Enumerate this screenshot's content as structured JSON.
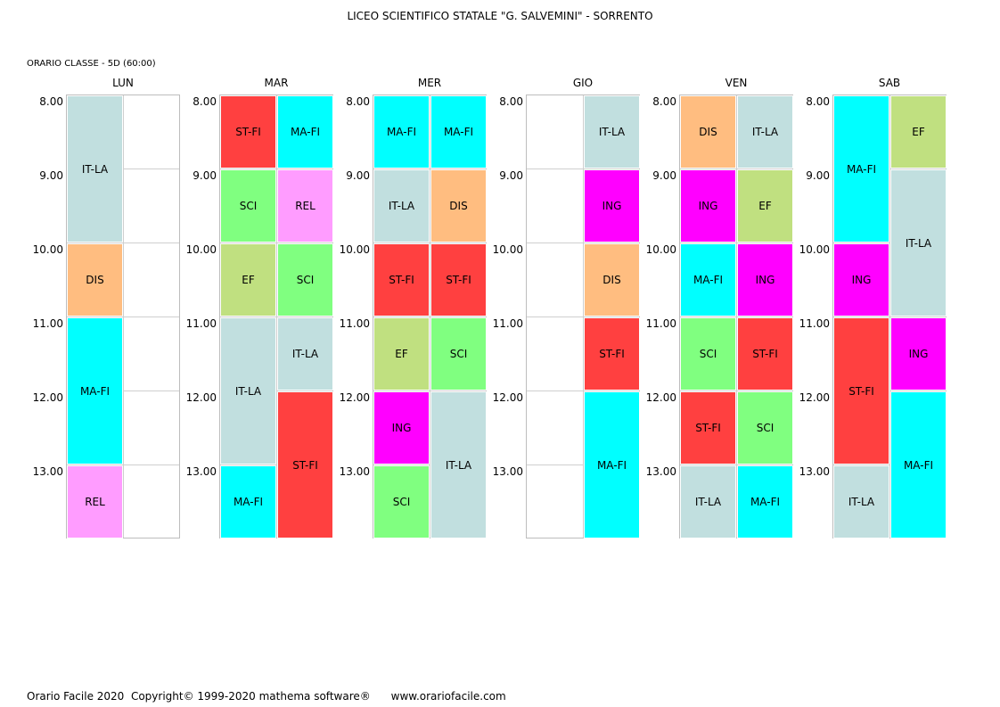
{
  "header": {
    "school": "LICEO SCIENTIFICO STATALE \"G. SALVEMINI\" - SORRENTO",
    "class_info": "ORARIO CLASSE  -  5D  (60:00)"
  },
  "times": [
    "8.00",
    "9.00",
    "10.00",
    "11.00",
    "12.00",
    "13.00"
  ],
  "colors": {
    "IT-LA": "#c1dfdf",
    "DIS": "#ffbd80",
    "MA-FI": "#00ffff",
    "REL": "#ff9cff",
    "ST-FI": "#ff4040",
    "SCI": "#80ff80",
    "EF": "#c0e080",
    "ING": "#ff00ff"
  },
  "days": [
    {
      "name": "LUN",
      "blocks": [
        {
          "col": 0,
          "start": 0,
          "span": 2,
          "subject": "IT-LA"
        },
        {
          "col": 0,
          "start": 2,
          "span": 1,
          "subject": "DIS"
        },
        {
          "col": 0,
          "start": 3,
          "span": 2,
          "subject": "MA-FI"
        },
        {
          "col": 0,
          "start": 5,
          "span": 1,
          "subject": "REL"
        }
      ]
    },
    {
      "name": "MAR",
      "blocks": [
        {
          "col": 0,
          "start": 0,
          "span": 1,
          "subject": "ST-FI"
        },
        {
          "col": 1,
          "start": 0,
          "span": 1,
          "subject": "MA-FI"
        },
        {
          "col": 0,
          "start": 1,
          "span": 1,
          "subject": "SCI"
        },
        {
          "col": 1,
          "start": 1,
          "span": 1,
          "subject": "REL"
        },
        {
          "col": 0,
          "start": 2,
          "span": 1,
          "subject": "EF"
        },
        {
          "col": 1,
          "start": 2,
          "span": 1,
          "subject": "SCI"
        },
        {
          "col": 0,
          "start": 3,
          "span": 2,
          "subject": "IT-LA"
        },
        {
          "col": 1,
          "start": 3,
          "span": 1,
          "subject": "IT-LA"
        },
        {
          "col": 1,
          "start": 4,
          "span": 2,
          "subject": "ST-FI"
        },
        {
          "col": 0,
          "start": 5,
          "span": 1,
          "subject": "MA-FI"
        }
      ]
    },
    {
      "name": "MER",
      "blocks": [
        {
          "col": 0,
          "start": 0,
          "span": 1,
          "subject": "MA-FI"
        },
        {
          "col": 1,
          "start": 0,
          "span": 1,
          "subject": "MA-FI"
        },
        {
          "col": 0,
          "start": 1,
          "span": 1,
          "subject": "IT-LA"
        },
        {
          "col": 1,
          "start": 1,
          "span": 1,
          "subject": "DIS"
        },
        {
          "col": 0,
          "start": 2,
          "span": 1,
          "subject": "ST-FI"
        },
        {
          "col": 1,
          "start": 2,
          "span": 1,
          "subject": "ST-FI"
        },
        {
          "col": 0,
          "start": 3,
          "span": 1,
          "subject": "EF"
        },
        {
          "col": 1,
          "start": 3,
          "span": 1,
          "subject": "SCI"
        },
        {
          "col": 0,
          "start": 4,
          "span": 1,
          "subject": "ING"
        },
        {
          "col": 1,
          "start": 4,
          "span": 2,
          "subject": "IT-LA"
        },
        {
          "col": 0,
          "start": 5,
          "span": 1,
          "subject": "SCI"
        }
      ]
    },
    {
      "name": "GIO",
      "blocks": [
        {
          "col": 1,
          "start": 0,
          "span": 1,
          "subject": "IT-LA"
        },
        {
          "col": 1,
          "start": 1,
          "span": 1,
          "subject": "ING"
        },
        {
          "col": 1,
          "start": 2,
          "span": 1,
          "subject": "DIS"
        },
        {
          "col": 1,
          "start": 3,
          "span": 1,
          "subject": "ST-FI"
        },
        {
          "col": 1,
          "start": 4,
          "span": 2,
          "subject": "MA-FI"
        }
      ]
    },
    {
      "name": "VEN",
      "blocks": [
        {
          "col": 0,
          "start": 0,
          "span": 1,
          "subject": "DIS"
        },
        {
          "col": 1,
          "start": 0,
          "span": 1,
          "subject": "IT-LA"
        },
        {
          "col": 0,
          "start": 1,
          "span": 1,
          "subject": "ING"
        },
        {
          "col": 1,
          "start": 1,
          "span": 1,
          "subject": "EF"
        },
        {
          "col": 0,
          "start": 2,
          "span": 1,
          "subject": "MA-FI"
        },
        {
          "col": 1,
          "start": 2,
          "span": 1,
          "subject": "ING"
        },
        {
          "col": 0,
          "start": 3,
          "span": 1,
          "subject": "SCI"
        },
        {
          "col": 1,
          "start": 3,
          "span": 1,
          "subject": "ST-FI"
        },
        {
          "col": 0,
          "start": 4,
          "span": 1,
          "subject": "ST-FI"
        },
        {
          "col": 1,
          "start": 4,
          "span": 1,
          "subject": "SCI"
        },
        {
          "col": 0,
          "start": 5,
          "span": 1,
          "subject": "IT-LA"
        },
        {
          "col": 1,
          "start": 5,
          "span": 1,
          "subject": "MA-FI"
        }
      ]
    },
    {
      "name": "SAB",
      "blocks": [
        {
          "col": 0,
          "start": 0,
          "span": 2,
          "subject": "MA-FI"
        },
        {
          "col": 1,
          "start": 0,
          "span": 1,
          "subject": "EF"
        },
        {
          "col": 1,
          "start": 1,
          "span": 2,
          "subject": "IT-LA"
        },
        {
          "col": 0,
          "start": 2,
          "span": 1,
          "subject": "ING"
        },
        {
          "col": 0,
          "start": 3,
          "span": 2,
          "subject": "ST-FI"
        },
        {
          "col": 1,
          "start": 3,
          "span": 1,
          "subject": "ING"
        },
        {
          "col": 1,
          "start": 4,
          "span": 2,
          "subject": "MA-FI"
        },
        {
          "col": 0,
          "start": 5,
          "span": 1,
          "subject": "IT-LA"
        }
      ]
    }
  ],
  "footer": {
    "text": "Orario Facile 2020  Copyright© 1999-2020 mathema software®      www.orariofacile.com"
  }
}
